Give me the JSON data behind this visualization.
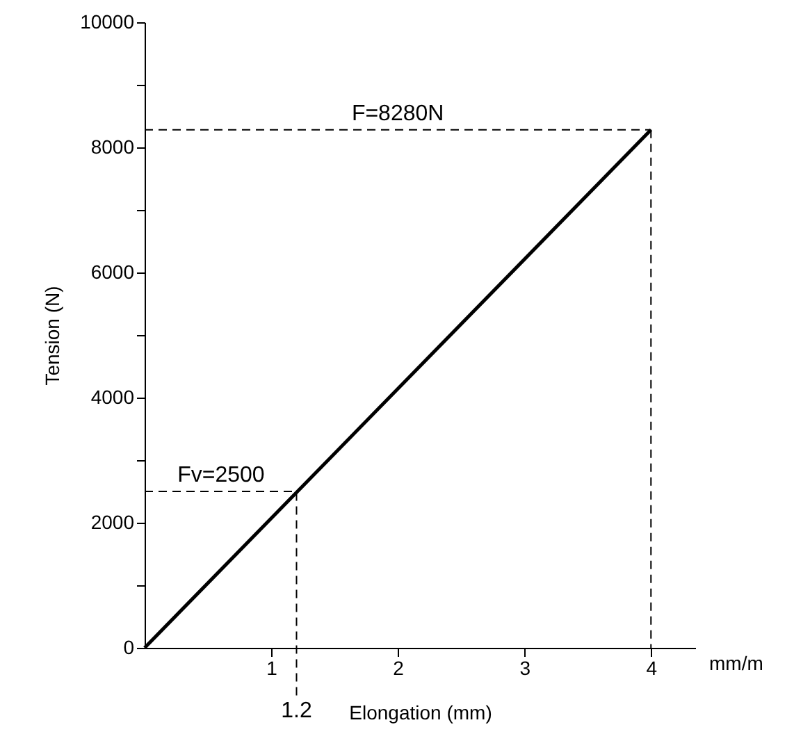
{
  "chart_data": {
    "type": "line",
    "xlabel": "Elongation (mm)",
    "ylabel": "Tension (N)",
    "x": [
      0,
      4
    ],
    "series": [
      {
        "color": "#000000",
        "values": [
          0,
          8280
        ]
      }
    ],
    "xlim": [
      0,
      4.35
    ],
    "xticks": [
      1,
      2,
      3,
      4
    ],
    "ylim": [
      0,
      10000
    ],
    "yticks": [
      0,
      {
        "value": 1000,
        "label": null
      },
      2000,
      {
        "value": 3000,
        "label": null
      },
      4000,
      {
        "value": 5000,
        "label": null
      },
      6000,
      {
        "value": 7000,
        "label": null
      },
      8000,
      {
        "value": 9000,
        "label": null
      },
      10000
    ],
    "ref_lines": [
      {
        "axis": "y",
        "value": 8280,
        "label": "F=8280N",
        "color": "#000000",
        "line_style": "dashed"
      },
      {
        "axis": "x",
        "value": 4,
        "color": "#000000",
        "line_style": "dashed"
      },
      {
        "axis": "y",
        "value": 2500,
        "label": "Fv=2500",
        "color": "#000000",
        "line_style": "dashed"
      },
      {
        "axis": "x",
        "value": 1.2,
        "label": "1.2",
        "color": "#000000",
        "line_style": "dashed"
      }
    ],
    "annotations": [
      "mm/m"
    ],
    "grid": false,
    "marker": "none",
    "line_style": "solid"
  }
}
